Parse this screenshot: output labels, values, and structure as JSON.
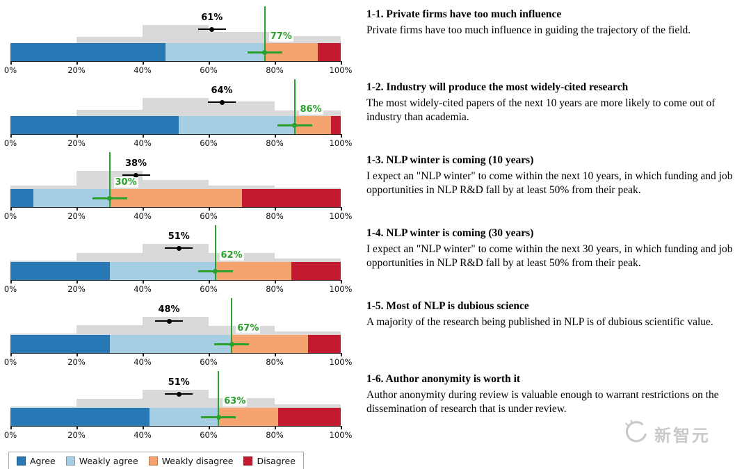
{
  "chart_data": {
    "type": "bar",
    "variant": "stacked horizontal survey results with prediction histograms, predicted (black) and actual (green) agreement markers",
    "x_axis": {
      "range": [
        0,
        100
      ],
      "tick_step": 20,
      "tick_labels": [
        "0%",
        "20%",
        "40%",
        "60%",
        "80%",
        "100%"
      ]
    },
    "series_keys": [
      "Agree",
      "Weakly agree",
      "Weakly disagree",
      "Disagree"
    ],
    "legend": [
      {
        "label": "Agree",
        "color": "#2878b5"
      },
      {
        "label": "Weakly agree",
        "color": "#a6cee3"
      },
      {
        "label": "Weakly disagree",
        "color": "#f5a470"
      },
      {
        "label": "Disagree",
        "color": "#c41a31"
      }
    ],
    "histogram_color": "#d9d9d9",
    "predicted_marker_color": "#000000",
    "actual_marker_color": "#2ca02c",
    "questions": [
      {
        "title": "1-1. Private firms have too much influence",
        "description": "Private firms have too much influence in guiding the trajectory of the field.",
        "predicted_pct": 61,
        "predicted_label": "61%",
        "actual_pct": 77,
        "actual_label": "77%",
        "segments": [
          47,
          30,
          16,
          7
        ],
        "histogram_bins_20pct": [
          0,
          0.35,
          1.0,
          0.6,
          0.4
        ]
      },
      {
        "title": "1-2. Industry will produce the most widely-cited research",
        "description": "The most widely-cited papers of the next 10 years are more likely to come out of industry than academia.",
        "predicted_pct": 64,
        "predicted_label": "64%",
        "actual_pct": 86,
        "actual_label": "86%",
        "segments": [
          51,
          35,
          11,
          3
        ],
        "histogram_bins_20pct": [
          0,
          0.35,
          1.0,
          0.8,
          0.3
        ]
      },
      {
        "title": "1-3. NLP winter is coming (10 years)",
        "description": "I expect an \"NLP winter\" to come within the next 10 years, in which funding and job opportunities in NLP R&D fall by at least 50% from their peak.",
        "predicted_pct": 38,
        "predicted_label": "38%",
        "actual_pct": 30,
        "actual_label": "30%",
        "segments": [
          7,
          23,
          40,
          30
        ],
        "histogram_bins_20pct": [
          0.2,
          1.0,
          0.5,
          0.2,
          0.08
        ]
      },
      {
        "title": "1-4. NLP winter is coming (30 years)",
        "description": "I expect an \"NLP winter\" to come within the next 30 years, in which funding and job opportunities in NLP R&D fall by at least 50% from their peak.",
        "predicted_pct": 51,
        "predicted_label": "51%",
        "actual_pct": 62,
        "actual_label": "62%",
        "segments": [
          30,
          32,
          23,
          15
        ],
        "histogram_bins_20pct": [
          0.08,
          0.5,
          1.0,
          0.5,
          0.18
        ]
      },
      {
        "title": "1-5. Most of NLP is dubious science",
        "description": "A majority of the research being published in NLP is of dubious scientific value.",
        "predicted_pct": 48,
        "predicted_label": "48%",
        "actual_pct": 67,
        "actual_label": "67%",
        "segments": [
          30,
          37,
          23,
          10
        ],
        "histogram_bins_20pct": [
          0.08,
          0.55,
          1.0,
          0.5,
          0.2
        ]
      },
      {
        "title": "1-6. Author anonymity is worth it",
        "description": "Author anonymity during review is valuable enough to warrant restrictions on the dissemination of research that is under review.",
        "predicted_pct": 51,
        "predicted_label": "51%",
        "actual_pct": 63,
        "actual_label": "63%",
        "segments": [
          42,
          21,
          18,
          19
        ],
        "histogram_bins_20pct": [
          0.08,
          0.5,
          1.0,
          0.55,
          0.2
        ]
      }
    ]
  },
  "watermark": {
    "text": "新智元"
  }
}
